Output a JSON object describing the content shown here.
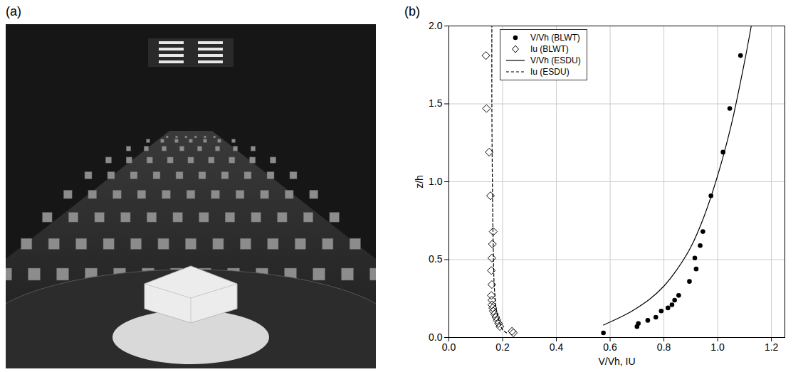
{
  "photo_panel": {
    "label": "(a)"
  },
  "chart_data": {
    "type": "scatter",
    "panel_label": "(b)",
    "x_label": "V/Vh, IU",
    "y_label": "z/h",
    "xlim": [
      0,
      1.25
    ],
    "ylim": [
      0,
      2.0
    ],
    "xticks": [
      {
        "value": 0,
        "label": "0.0"
      },
      {
        "value": 0.2,
        "label": "0.2"
      },
      {
        "value": 0.4,
        "label": "0.4"
      },
      {
        "value": 0.6,
        "label": "0.6"
      },
      {
        "value": 0.8,
        "label": "0.8"
      },
      {
        "value": 1.0,
        "label": "1.0"
      },
      {
        "value": 1.2,
        "label": "1.2"
      }
    ],
    "yticks": [
      {
        "value": 0,
        "label": "0.0"
      },
      {
        "value": 0.5,
        "label": "0.5"
      },
      {
        "value": 1.0,
        "label": "1.0"
      },
      {
        "value": 1.5,
        "label": "1.5"
      },
      {
        "value": 2.0,
        "label": "2.0"
      }
    ],
    "grid": true,
    "legend": "upper left",
    "series": [
      {
        "name": "V/Vh (BLWT)",
        "type": "scatter",
        "marker": "circle",
        "color": "#000000",
        "x": [
          0.575,
          0.7,
          0.705,
          0.74,
          0.77,
          0.79,
          0.815,
          0.83,
          0.84,
          0.855,
          0.895,
          0.92,
          0.915,
          0.935,
          0.945,
          0.975,
          1.02,
          1.045,
          1.085
        ],
        "values": [
          0.03,
          0.07,
          0.09,
          0.11,
          0.13,
          0.17,
          0.19,
          0.21,
          0.24,
          0.27,
          0.36,
          0.44,
          0.51,
          0.59,
          0.68,
          0.91,
          1.19,
          1.47,
          1.81
        ]
      },
      {
        "name": "Iu (BLWT)",
        "type": "scatter",
        "marker": "diamond",
        "color": "#000000",
        "x": [
          0.24,
          0.235,
          0.19,
          0.185,
          0.18,
          0.175,
          0.17,
          0.165,
          0.163,
          0.16,
          0.16,
          0.158,
          0.16,
          0.158,
          0.16,
          0.162,
          0.165,
          0.155,
          0.15,
          0.14,
          0.138
        ],
        "values": [
          0.03,
          0.04,
          0.07,
          0.09,
          0.11,
          0.13,
          0.15,
          0.17,
          0.19,
          0.21,
          0.24,
          0.27,
          0.34,
          0.43,
          0.51,
          0.6,
          0.68,
          0.91,
          1.19,
          1.47,
          1.81
        ]
      },
      {
        "name": "V/Vh (ESDU)",
        "type": "line",
        "line_style": "solid",
        "color": "#000000",
        "x": [
          0.575,
          0.65,
          0.7,
          0.75,
          0.8,
          0.85,
          0.9,
          0.95,
          1.0,
          1.05,
          1.1,
          1.125
        ],
        "values": [
          0.08,
          0.14,
          0.19,
          0.25,
          0.33,
          0.44,
          0.58,
          0.78,
          1.04,
          1.36,
          1.77,
          2.0
        ]
      },
      {
        "name": "Iu (ESDU)",
        "type": "line",
        "line_style": "dashed",
        "color": "#000000",
        "x": [
          0.215,
          0.2,
          0.18,
          0.17,
          0.165,
          0.162,
          0.16,
          0.16
        ],
        "values": [
          0.03,
          0.05,
          0.15,
          0.3,
          0.6,
          1.0,
          1.5,
          2.0
        ]
      }
    ]
  }
}
